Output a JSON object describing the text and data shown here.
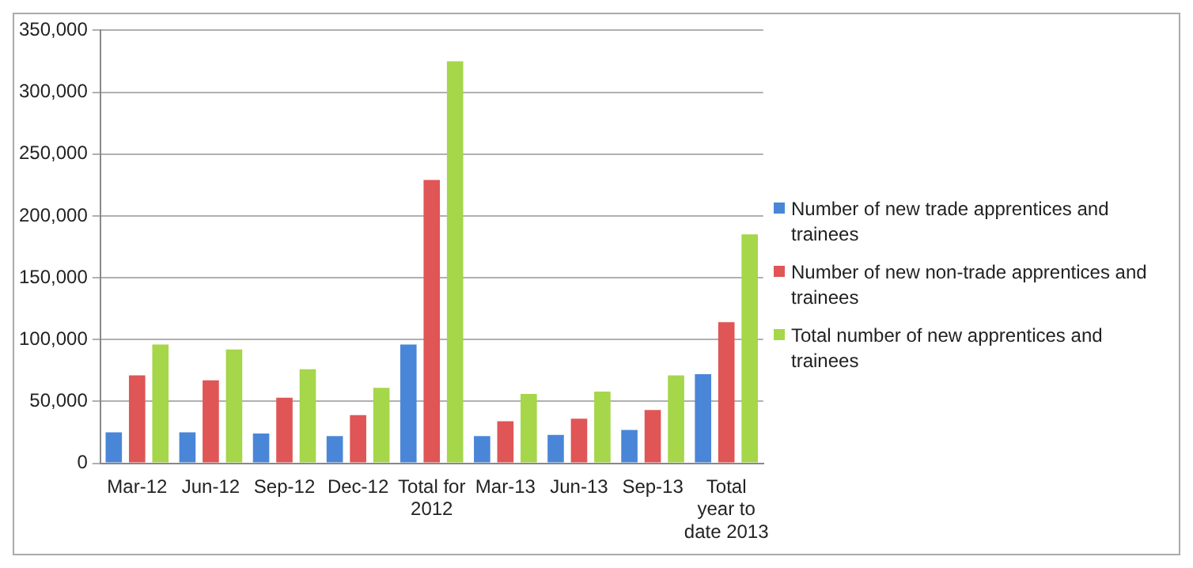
{
  "chart_data": {
    "type": "bar",
    "categories": [
      "Mar-12",
      "Jun-12",
      "Sep-12",
      "Dec-12",
      "Total for 2012",
      "Mar-13",
      "Jun-13",
      "Sep-13",
      "Total year to date 2013"
    ],
    "series": [
      {
        "name": "Number of new trade apprentices and trainees",
        "color": "#4a86d8",
        "values": [
          25000,
          25000,
          24000,
          22000,
          96000,
          22000,
          23000,
          27000,
          72000
        ]
      },
      {
        "name": "Number of new non-trade apprentices and trainees",
        "color": "#e05555",
        "values": [
          71000,
          67000,
          53000,
          39000,
          229000,
          34000,
          36000,
          43000,
          114000
        ]
      },
      {
        "name": "Total number of new apprentices and trainees",
        "color": "#a6d64a",
        "values": [
          96000,
          92000,
          76000,
          61000,
          325000,
          56000,
          58000,
          71000,
          185000
        ]
      }
    ],
    "ylim": [
      0,
      350000
    ],
    "yticks": [
      0,
      {
        "value": 50000,
        "label": "50,000"
      },
      {
        "value": 100000,
        "label": "100,000"
      },
      {
        "value": 150000,
        "label": "150,000"
      },
      {
        "value": 200000,
        "label": "200,000"
      },
      {
        "value": 250000,
        "label": "250,000"
      },
      {
        "value": 300000,
        "label": "300,000"
      },
      {
        "value": 350000,
        "label": "350,000"
      }
    ],
    "grid": "y",
    "legend": "right"
  }
}
